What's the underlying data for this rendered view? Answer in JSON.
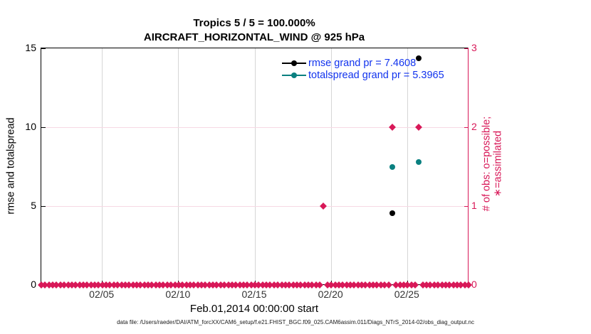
{
  "title": {
    "line1": "Tropics 5 / 5 = 100.000%",
    "line2": "AIRCRAFT_HORIZONTAL_WIND @ 925 hPa"
  },
  "axes": {
    "left": {
      "label": "rmse and totalspread",
      "ticks": [
        "0",
        "5",
        "10",
        "15"
      ],
      "tick_values": [
        0,
        5,
        10,
        15
      ],
      "range": [
        0,
        15
      ],
      "color": "#000000"
    },
    "right": {
      "label": "# of obs: o=possible; ∗=assimilated",
      "ticks": [
        "0",
        "1",
        "2",
        "3"
      ],
      "tick_values": [
        0,
        1,
        2,
        3
      ],
      "range": [
        0,
        3
      ],
      "color": "#d81858"
    },
    "x": {
      "label": "Feb.01,2014 00:00:00 start",
      "ticks": [
        "02/05",
        "02/10",
        "02/15",
        "02/20",
        "02/25"
      ],
      "tick_days": [
        4,
        9,
        14,
        19,
        24
      ],
      "range_days": [
        0,
        28
      ]
    }
  },
  "legend": [
    {
      "label": "rmse grand pr = 7.4608",
      "color": "#000000"
    },
    {
      "label": "totalspread grand pr = 5.3965",
      "color": "#0a8080"
    }
  ],
  "colors": {
    "pink": "#d81858",
    "teal": "#0a8080",
    "black": "#000000",
    "legend_text_blue": "#1133ee",
    "grid_vertical_gray": "#d6d6d6",
    "grid_horizontal_pink": "#f6d9e4"
  },
  "chart_data": {
    "type": "scatter",
    "title": "Tropics 5 / 5 = 100.000%",
    "subtitle": "AIRCRAFT_HORIZONTAL_WIND @ 925 hPa",
    "xlabel": "Feb.01,2014 00:00:00 start",
    "x_ticks": [
      "02/05",
      "02/10",
      "02/15",
      "02/20",
      "02/25"
    ],
    "x_tick_days": [
      4,
      9,
      14,
      19,
      24
    ],
    "x_range_days": [
      0,
      28
    ],
    "y_left": {
      "label": "rmse and totalspread",
      "lim": [
        0,
        15
      ],
      "grid_values": [
        5,
        10
      ]
    },
    "y_right": {
      "label": "# of obs: o=possible; ∗=assimilated",
      "lim": [
        0,
        3
      ]
    },
    "grid": true,
    "legend_position": "top-center-inside",
    "series": [
      {
        "name": "rmse",
        "axis": "left",
        "color": "#000000",
        "marker": "circle",
        "points": [
          {
            "day": 23.0,
            "value": 4.55
          },
          {
            "day": 24.75,
            "value": 14.35
          }
        ]
      },
      {
        "name": "totalspread",
        "axis": "left",
        "color": "#0a8080",
        "marker": "circle",
        "points": [
          {
            "day": 23.0,
            "value": 7.5
          },
          {
            "day": 24.75,
            "value": 7.78
          }
        ]
      },
      {
        "name": "obs_count",
        "axis": "right",
        "color": "#d81858",
        "marker": "diamond",
        "points": [
          {
            "day": 18.5,
            "value": 1
          },
          {
            "day": 23.0,
            "value": 2
          },
          {
            "day": 24.75,
            "value": 2
          }
        ]
      }
    ],
    "obs_zero_run": {
      "description": "dense row of diamonds at count 0 for every timestep",
      "axis": "right",
      "value": 0,
      "start_day": 0,
      "end_day": 28,
      "step_day": 0.25,
      "excluded_days": [
        18.5,
        23.0,
        24.75
      ],
      "color": "#d81858",
      "marker": "diamond"
    }
  },
  "footer": "data file: /Users/raeder/DAI/ATM_forcXX/CAM6_setup/f.e21.FHIST_BGC.f09_025.CAM6assim.011/Diags_NTrS_2014-02/obs_diag_output.nc"
}
